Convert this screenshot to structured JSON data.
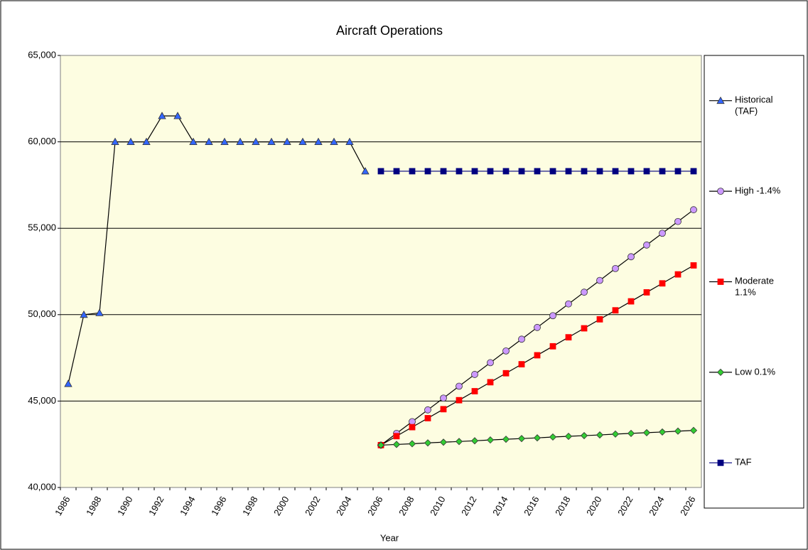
{
  "chart_data": {
    "type": "line",
    "title": "Aircraft Operations",
    "x_label": "Year",
    "categories": [
      "1986",
      null,
      "1988",
      null,
      "1990",
      null,
      "1992",
      null,
      "1994",
      null,
      "1996",
      null,
      "1998",
      null,
      "2000",
      null,
      "2002",
      null,
      "2004",
      null,
      "2006",
      null,
      "2008",
      null,
      "2010",
      null,
      "2012",
      null,
      "2014",
      null,
      "2016",
      null,
      "2018",
      null,
      "2020",
      null,
      "2022",
      null,
      "2024",
      null,
      "2026"
    ],
    "ylim": [
      40000,
      65000
    ],
    "yticks": [
      {
        "value": 40000,
        "label": "40,000"
      },
      {
        "value": 45000,
        "label": "45,000"
      },
      {
        "value": 50000,
        "label": "50,000"
      },
      {
        "value": 55000,
        "label": "55,000"
      },
      {
        "value": 60000,
        "label": "60,000"
      },
      {
        "value": 65000,
        "label": "65,000"
      }
    ],
    "grid": true,
    "legend": "right",
    "series": [
      {
        "name": "Historical (TAF)",
        "color": "#3366ff",
        "line_color": "#000000",
        "marker": "triangle",
        "values": [
          46000,
          50000,
          50100,
          60000,
          60000,
          60000,
          61500,
          61500,
          60000,
          60000,
          60000,
          60000,
          60000,
          60000,
          60000,
          60000,
          60000,
          60000,
          60000,
          58300,
          null,
          null,
          null,
          null,
          null,
          null,
          null,
          null,
          null,
          null,
          null,
          null,
          null,
          null,
          null,
          null,
          null,
          null,
          null,
          null,
          null
        ]
      },
      {
        "name": "High -1.4%",
        "color": "#cc99ff",
        "line_color": "#000000",
        "marker": "circle",
        "values": [
          null,
          null,
          null,
          null,
          null,
          null,
          null,
          null,
          null,
          null,
          null,
          null,
          null,
          null,
          null,
          null,
          null,
          null,
          null,
          null,
          42450,
          43130,
          43810,
          44490,
          45170,
          45860,
          46540,
          47220,
          47900,
          48580,
          49260,
          49940,
          50620,
          51300,
          51980,
          52670,
          53350,
          54030,
          54710,
          55390,
          56070
        ]
      },
      {
        "name": "Moderate 1.1%",
        "color": "#ff0000",
        "line_color": "#000000",
        "marker": "square",
        "values": [
          null,
          null,
          null,
          null,
          null,
          null,
          null,
          null,
          null,
          null,
          null,
          null,
          null,
          null,
          null,
          null,
          null,
          null,
          null,
          null,
          42450,
          42970,
          43490,
          44010,
          44530,
          45050,
          45570,
          46090,
          46610,
          47130,
          47650,
          48170,
          48690,
          49210,
          49730,
          50250,
          50770,
          51290,
          51810,
          52330,
          52850
        ]
      },
      {
        "name": "Low 0.1%",
        "color": "#33cc33",
        "line_color": "#000000",
        "marker": "diamond",
        "values": [
          null,
          null,
          null,
          null,
          null,
          null,
          null,
          null,
          null,
          null,
          null,
          null,
          null,
          null,
          null,
          null,
          null,
          null,
          null,
          null,
          42450,
          42490,
          42530,
          42580,
          42620,
          42660,
          42700,
          42750,
          42790,
          42830,
          42870,
          42920,
          42960,
          43000,
          43040,
          43090,
          43130,
          43170,
          43210,
          43260,
          43300
        ]
      },
      {
        "name": "TAF",
        "color": "#000080",
        "line_color": "#000080",
        "marker": "square",
        "values": [
          null,
          null,
          null,
          null,
          null,
          null,
          null,
          null,
          null,
          null,
          null,
          null,
          null,
          null,
          null,
          null,
          null,
          null,
          null,
          null,
          58300,
          58300,
          58300,
          58300,
          58300,
          58300,
          58300,
          58300,
          58300,
          58300,
          58300,
          58300,
          58300,
          58300,
          58300,
          58300,
          58300,
          58300,
          58300,
          58300,
          58300
        ]
      }
    ]
  }
}
